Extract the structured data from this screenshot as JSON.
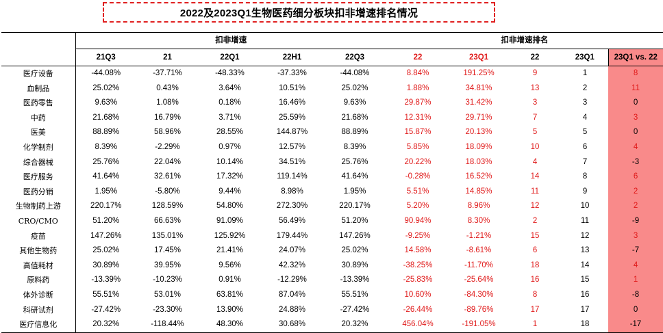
{
  "title": "2022及2023Q1生物医药细分板块扣非增速排名情况",
  "groups": {
    "growth": "扣非增速",
    "rank": "扣非增速排名"
  },
  "columns": [
    "21Q3",
    "21",
    "22Q1",
    "22H1",
    "22Q3",
    "22",
    "23Q1",
    "22",
    "23Q1",
    "23Q1 vs. 22"
  ],
  "red_header_indices": [
    5,
    6
  ],
  "colors": {
    "highlight_bg": "#f98a8a",
    "red_text": "#e01818"
  },
  "rows": [
    {
      "name": "医疗设备",
      "values": [
        "-44.08%",
        "-37.71%",
        "-48.33%",
        "-37.33%",
        "-44.08%",
        "8.84%",
        "191.25%",
        "9",
        "1",
        "8"
      ]
    },
    {
      "name": "血制品",
      "values": [
        "25.02%",
        "0.43%",
        "3.64%",
        "10.51%",
        "25.02%",
        "1.88%",
        "34.81%",
        "13",
        "2",
        "11"
      ]
    },
    {
      "name": "医药零售",
      "values": [
        "9.63%",
        "1.08%",
        "0.18%",
        "16.46%",
        "9.63%",
        "29.87%",
        "31.42%",
        "3",
        "3",
        "0"
      ]
    },
    {
      "name": "中药",
      "values": [
        "21.68%",
        "16.79%",
        "3.71%",
        "25.59%",
        "21.68%",
        "12.31%",
        "29.71%",
        "7",
        "4",
        "3"
      ]
    },
    {
      "name": "医美",
      "values": [
        "88.89%",
        "58.96%",
        "28.55%",
        "144.87%",
        "88.89%",
        "15.87%",
        "20.13%",
        "5",
        "5",
        "0"
      ]
    },
    {
      "name": "化学制剂",
      "values": [
        "8.39%",
        "-2.29%",
        "0.97%",
        "12.57%",
        "8.39%",
        "5.85%",
        "18.09%",
        "10",
        "6",
        "4"
      ]
    },
    {
      "name": "综合器械",
      "values": [
        "25.76%",
        "22.04%",
        "10.14%",
        "34.51%",
        "25.76%",
        "20.22%",
        "18.03%",
        "4",
        "7",
        "-3"
      ]
    },
    {
      "name": "医疗服务",
      "values": [
        "41.64%",
        "32.61%",
        "17.32%",
        "119.14%",
        "41.64%",
        "-0.28%",
        "16.52%",
        "14",
        "8",
        "6"
      ]
    },
    {
      "name": "医药分销",
      "values": [
        "1.95%",
        "-5.80%",
        "9.44%",
        "8.98%",
        "1.95%",
        "5.51%",
        "14.85%",
        "11",
        "9",
        "2"
      ]
    },
    {
      "name": "生物制药上游",
      "values": [
        "220.17%",
        "128.59%",
        "54.80%",
        "272.30%",
        "220.17%",
        "5.20%",
        "8.96%",
        "12",
        "10",
        "2"
      ]
    },
    {
      "name": "CRO/CMO",
      "values": [
        "51.20%",
        "66.63%",
        "91.09%",
        "56.49%",
        "51.20%",
        "90.94%",
        "8.30%",
        "2",
        "11",
        "-9"
      ]
    },
    {
      "name": "疫苗",
      "values": [
        "147.26%",
        "135.01%",
        "125.92%",
        "179.44%",
        "147.26%",
        "-9.25%",
        "-1.21%",
        "15",
        "12",
        "3"
      ]
    },
    {
      "name": "其他生物药",
      "values": [
        "25.02%",
        "17.45%",
        "21.41%",
        "24.07%",
        "25.02%",
        "14.58%",
        "-8.61%",
        "6",
        "13",
        "-7"
      ]
    },
    {
      "name": "高值耗材",
      "values": [
        "30.89%",
        "39.95%",
        "9.56%",
        "42.32%",
        "30.89%",
        "-38.25%",
        "-11.70%",
        "18",
        "14",
        "4"
      ]
    },
    {
      "name": "原料药",
      "values": [
        "-13.39%",
        "-10.23%",
        "0.91%",
        "-12.29%",
        "-13.39%",
        "-25.83%",
        "-25.64%",
        "16",
        "15",
        "1"
      ]
    },
    {
      "name": "体外诊断",
      "values": [
        "55.51%",
        "53.01%",
        "63.81%",
        "87.04%",
        "55.51%",
        "10.60%",
        "-84.30%",
        "8",
        "16",
        "-8"
      ]
    },
    {
      "name": "科研试剂",
      "values": [
        "-27.42%",
        "-23.30%",
        "13.90%",
        "24.88%",
        "-27.42%",
        "-26.44%",
        "-89.76%",
        "17",
        "17",
        "0"
      ]
    },
    {
      "name": "医疗信息化",
      "values": [
        "20.32%",
        "-118.44%",
        "48.30%",
        "30.68%",
        "20.32%",
        "456.04%",
        "-191.05%",
        "1",
        "18",
        "-17"
      ]
    }
  ]
}
